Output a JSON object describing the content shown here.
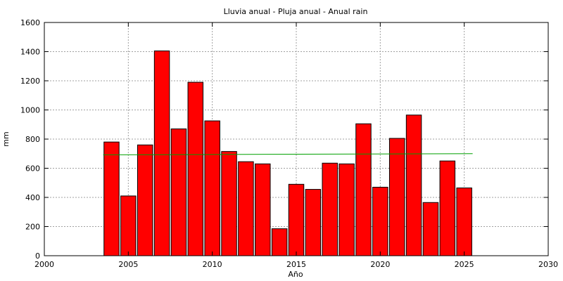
{
  "chart_data": {
    "type": "bar",
    "title": "Lluvia anual - Pluja anual - Anual rain",
    "xlabel": "Año",
    "ylabel": "mm",
    "xlim": [
      2000,
      2030
    ],
    "ylim": [
      0,
      1600
    ],
    "xticks": [
      2000,
      2005,
      2010,
      2015,
      2020,
      2025,
      2030
    ],
    "yticks": [
      0,
      200,
      400,
      600,
      800,
      1000,
      1200,
      1400,
      1600
    ],
    "grid": true,
    "x": [
      2004,
      2005,
      2006,
      2007,
      2008,
      2009,
      2010,
      2011,
      2012,
      2013,
      2014,
      2015,
      2016,
      2017,
      2018,
      2019,
      2020,
      2021,
      2022,
      2023,
      2024,
      2025
    ],
    "values": [
      780,
      410,
      760,
      1405,
      870,
      1190,
      925,
      715,
      645,
      630,
      185,
      490,
      455,
      635,
      630,
      905,
      470,
      805,
      965,
      365,
      650,
      465
    ],
    "trend_line": {
      "x": [
        2003.5,
        2025.5
      ],
      "y": [
        692,
        700
      ]
    },
    "colors": {
      "bar_fill": "#ff0000",
      "bar_stroke": "#000000",
      "trend": "#00a000",
      "grid": "#a0a0a0"
    }
  }
}
